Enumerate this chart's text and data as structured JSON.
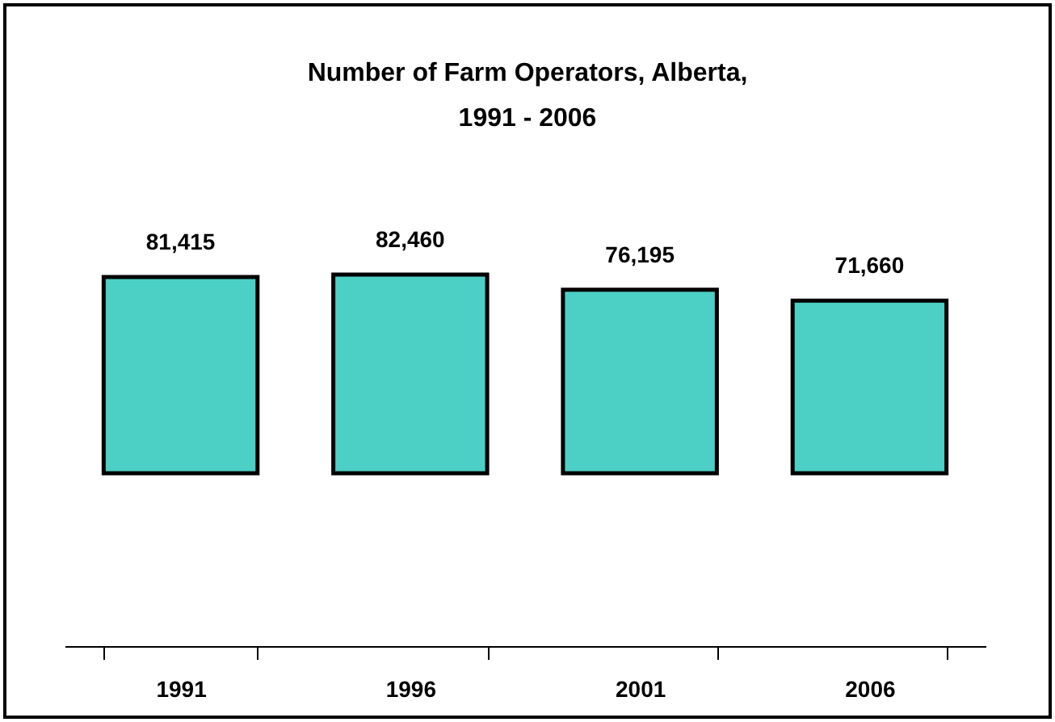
{
  "chart_data": {
    "type": "bar",
    "title": "Number of Farm Operators, Alberta, 1991 - 2006",
    "categories": [
      "1991",
      "1996",
      "2001",
      "2006"
    ],
    "values": [
      81415,
      82460,
      76195,
      71660
    ],
    "value_labels": [
      "81,415",
      "82,460",
      "76,195",
      "71,660"
    ],
    "color": "#4ccfc4"
  }
}
